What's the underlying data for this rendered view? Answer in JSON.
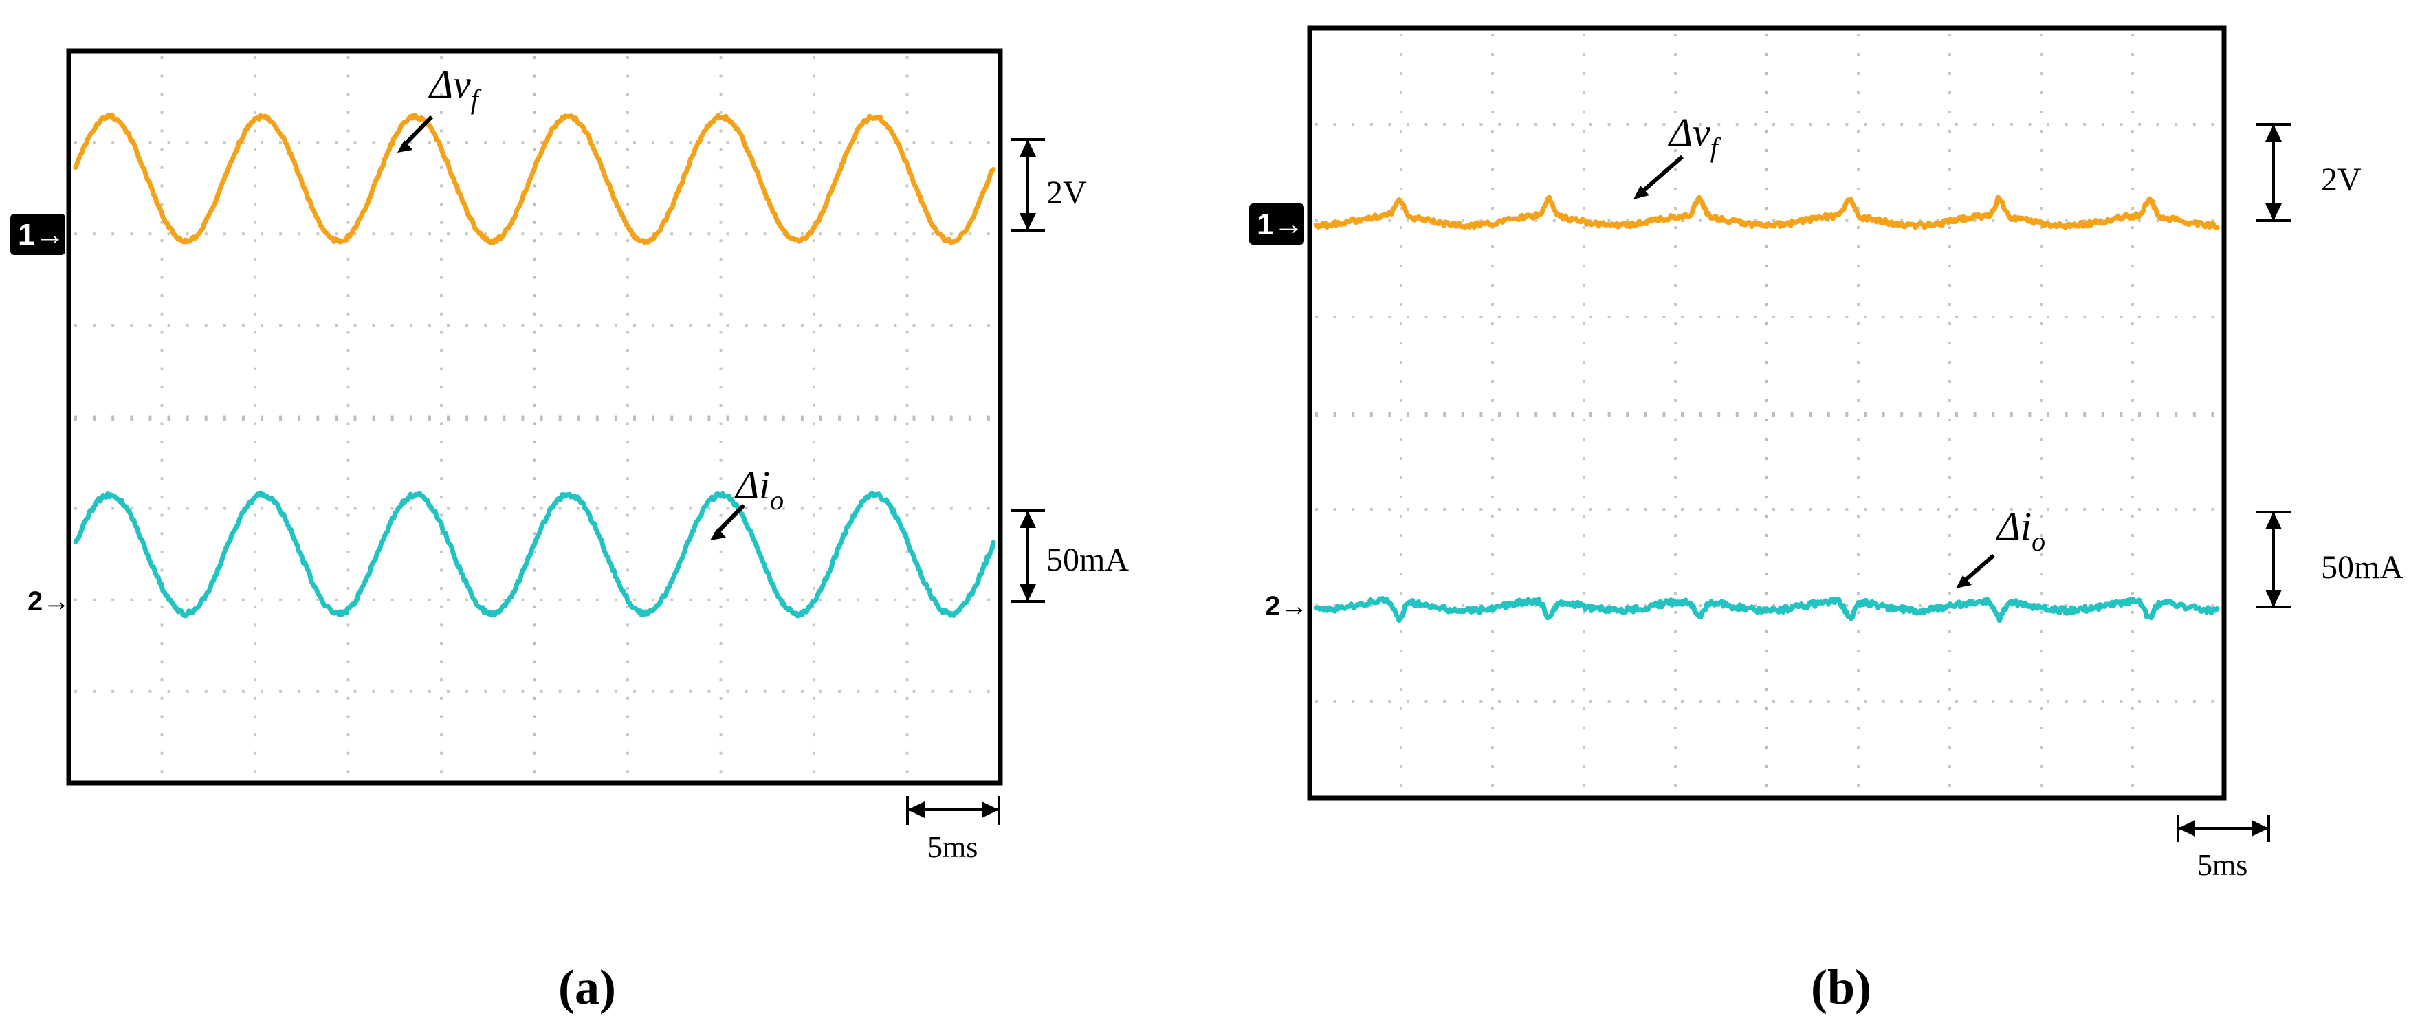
{
  "chart_data": [
    {
      "type": "line",
      "panel_label": "(a)",
      "divisions": {
        "x": 10,
        "y": 8
      },
      "channels": [
        {
          "marker": "1",
          "scale": "2V",
          "color": "#f5a21b",
          "label_main": "Δv",
          "label_sub": "f",
          "waveform": {
            "amplitude_div": 0.68,
            "cycles": 6.0,
            "phase": 1.75,
            "noise": 0.04,
            "offset_div": 1.4
          }
        },
        {
          "marker": "2",
          "scale": "50mA",
          "color": "#22c3c1",
          "label_main": "Δi",
          "label_sub": "o",
          "waveform": {
            "amplitude_div": 0.65,
            "cycles": 6.0,
            "phase": 1.75,
            "noise": 0.05,
            "offset_div": 5.5
          }
        }
      ],
      "time_scale": "5ms"
    },
    {
      "type": "line",
      "panel_label": "(b)",
      "divisions": {
        "x": 10,
        "y": 8
      },
      "channels": [
        {
          "marker": "1",
          "scale": "2V",
          "color": "#f5a21b",
          "label_main": "Δv",
          "label_sub": "f",
          "waveform": {
            "amplitude_div": 0.05,
            "cycles": 6.0,
            "phase": 0.0,
            "noise": 0.05,
            "offset_div": 2.0
          }
        },
        {
          "marker": "2",
          "scale": "50mA",
          "color": "#22c3c1",
          "label_main": "Δi",
          "label_sub": "o",
          "waveform": {
            "amplitude_div": 0.05,
            "cycles": 6.0,
            "phase": 0.0,
            "noise": 0.06,
            "offset_div": 6.0
          }
        }
      ],
      "time_scale": "5ms"
    }
  ]
}
